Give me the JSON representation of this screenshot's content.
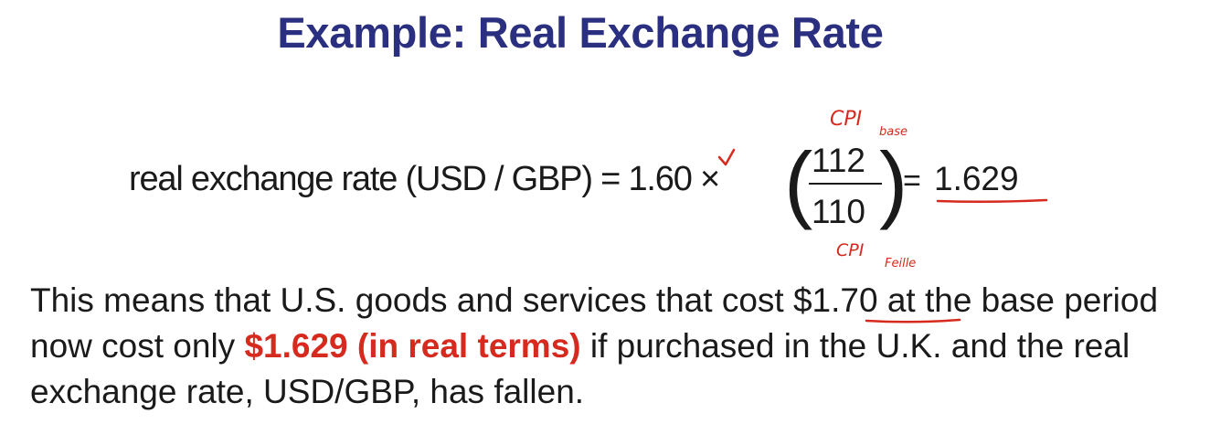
{
  "slide": {
    "title": "Example: Real Exchange Rate"
  },
  "formula": {
    "label": "real exchange rate (USD / GBP) = 1.60 ×",
    "numerator": "112",
    "denominator": "110",
    "equals": "=",
    "result": "1.629"
  },
  "annotations": {
    "top_note": "CPI",
    "top_sub": "base",
    "bottom_note": "CPI",
    "bottom_sub": "Feille",
    "ink_color": "#d62a1e"
  },
  "paragraph": {
    "part1": "This means that U.S. goods and services that cost $1.70 at the base period now cost only ",
    "highlight": "$1.629 (in real terms)",
    "part2": " if purchased in the U.K. and the real exchange rate, USD/GBP, has fallen."
  },
  "colors": {
    "title": "#2b2f7f",
    "highlight": "#d62a1e",
    "body_text": "#1a1a1a"
  }
}
